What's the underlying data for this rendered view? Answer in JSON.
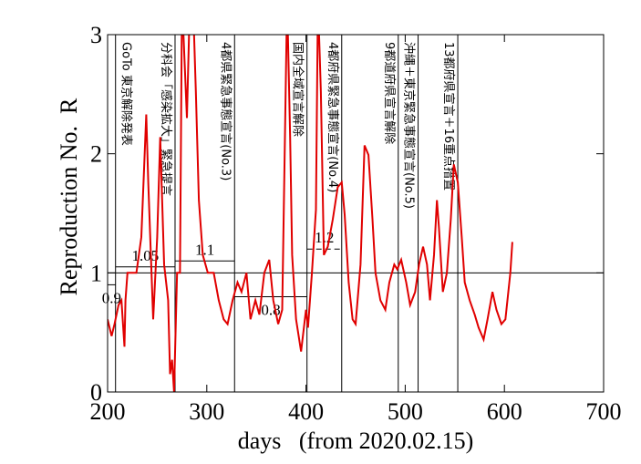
{
  "chart_data": {
    "type": "line",
    "xlabel": "days   (from 2020.02.15)",
    "ylabel": "Reproduction No.  R",
    "xlim": [
      200,
      700
    ],
    "xticks": [
      200,
      300,
      400,
      500,
      600,
      700
    ],
    "ylim": [
      0,
      3
    ],
    "yticks": [
      0,
      1,
      2,
      3
    ],
    "color": "#e00000",
    "x": [
      200,
      204,
      207,
      211,
      214,
      217,
      218,
      220,
      225,
      229,
      234,
      239,
      241,
      246,
      250,
      253,
      257,
      261,
      263,
      265,
      267,
      270,
      273,
      275,
      280,
      283,
      286,
      289,
      292,
      296,
      301,
      307,
      312,
      317,
      321,
      326,
      331,
      335,
      340,
      344,
      349,
      353,
      358,
      363,
      367,
      372,
      376,
      381,
      384,
      386,
      390,
      395,
      400,
      402,
      406,
      410,
      412,
      415,
      418,
      422,
      427,
      432,
      436,
      439,
      443,
      447,
      450,
      455,
      459,
      463,
      467,
      470,
      475,
      480,
      484,
      489,
      492,
      496,
      501,
      505,
      510,
      514,
      518,
      522,
      525,
      529,
      532,
      534,
      538,
      542,
      546,
      549,
      553,
      557,
      560,
      565,
      570,
      574,
      579,
      583,
      588,
      592,
      597,
      601,
      606,
      608
    ],
    "values": [
      0.61,
      0.47,
      0.57,
      0.73,
      0.77,
      0.38,
      0.77,
      1.0,
      1.0,
      1.0,
      1.3,
      2.33,
      1.76,
      0.61,
      1.3,
      2.14,
      1.07,
      0.77,
      0.15,
      0.27,
      0,
      1.0,
      1.0,
      3.3,
      2.3,
      3.3,
      3.3,
      2.52,
      1.61,
      1.15,
      1.0,
      1.0,
      0.77,
      0.61,
      0.57,
      0.77,
      0.92,
      0.84,
      1.0,
      0.61,
      0.77,
      0.65,
      1.0,
      1.11,
      0.77,
      0.57,
      0.69,
      3.3,
      2.14,
      1.15,
      0.61,
      0.34,
      0.69,
      0.54,
      1.0,
      1.53,
      3.3,
      2.52,
      1.15,
      1.22,
      1.45,
      1.72,
      1.76,
      1.49,
      0.92,
      0.61,
      0.57,
      1.07,
      2.07,
      1.99,
      1.45,
      1.0,
      0.77,
      0.69,
      0.92,
      1.07,
      1.03,
      1.11,
      0.92,
      0.73,
      0.84,
      1.07,
      1.22,
      1.07,
      0.77,
      1.15,
      1.61,
      1.38,
      0.84,
      1.0,
      1.45,
      1.91,
      1.76,
      1.3,
      0.92,
      0.77,
      0.65,
      0.54,
      0.44,
      0.61,
      0.84,
      0.69,
      0.57,
      0.61,
      1.0,
      1.26
    ],
    "reference": 1,
    "segments": [
      {
        "start": 200,
        "end": 208,
        "level": 0.9
      },
      {
        "start": 208,
        "end": 268,
        "level": 1.05
      },
      {
        "start": 268,
        "end": 328,
        "level": 1.1
      },
      {
        "start": 328,
        "end": 401,
        "level": 0.8
      },
      {
        "start": 401,
        "end": 436,
        "level": 1.2,
        "style": "dashed"
      }
    ],
    "annotations": [
      {
        "day": 208,
        "text": "GoTo 東京解除発表"
      },
      {
        "day": 268,
        "text": "分科会「感染拡大」緊急提言"
      },
      {
        "day": 328,
        "text": "4都県緊急事態宣言(No.3)"
      },
      {
        "day": 401,
        "text": "国内全域宣言解除"
      },
      {
        "day": 436,
        "text": "4都府県緊急事態宣言(No.4)"
      },
      {
        "day": 493,
        "text": "9都道府県宣言解除"
      },
      {
        "day": 513,
        "text": "沖縄＋東京緊急事態宣言(No.5)"
      },
      {
        "day": 553,
        "text": "13都府県宣言＋16重点措置"
      }
    ]
  }
}
